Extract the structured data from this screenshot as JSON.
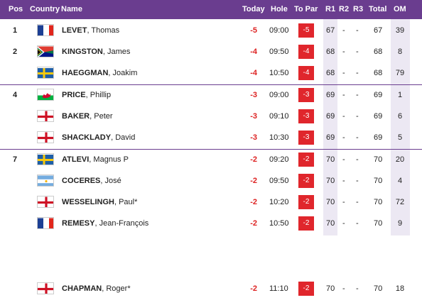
{
  "headers": {
    "pos": "Pos",
    "country": "Country",
    "name": "Name",
    "today": "Today",
    "hole": "Hole",
    "topar": "To Par",
    "r1": "R1",
    "r2": "R2",
    "r3": "R3",
    "total": "Total",
    "om": "OM"
  },
  "rows": [
    {
      "pos": "1",
      "flag": "france-flag-icon",
      "last": "LEVET",
      "first": "Thomas",
      "today": "-5",
      "hole": "09:00",
      "topar": "-5",
      "r1": "67",
      "r2": "-",
      "r3": "-",
      "total": "67",
      "om": "39"
    },
    {
      "pos": "2",
      "flag": "south-africa-flag-icon",
      "last": "KINGSTON",
      "first": "James",
      "today": "-4",
      "hole": "09:50",
      "topar": "-4",
      "r1": "68",
      "r2": "-",
      "r3": "-",
      "total": "68",
      "om": "8"
    },
    {
      "pos": "",
      "flag": "sweden-flag-icon",
      "last": "HAEGGMAN",
      "first": "Joakim",
      "today": "-4",
      "hole": "10:50",
      "topar": "-4",
      "r1": "68",
      "r2": "-",
      "r3": "-",
      "total": "68",
      "om": "79"
    },
    {
      "pos": "4",
      "flag": "wales-flag-icon",
      "last": "PRICE",
      "first": "Phillip",
      "today": "-3",
      "hole": "09:00",
      "topar": "-3",
      "r1": "69",
      "r2": "-",
      "r3": "-",
      "total": "69",
      "om": "1"
    },
    {
      "pos": "",
      "flag": "england-flag-icon",
      "last": "BAKER",
      "first": "Peter",
      "today": "-3",
      "hole": "09:10",
      "topar": "-3",
      "r1": "69",
      "r2": "-",
      "r3": "-",
      "total": "69",
      "om": "6"
    },
    {
      "pos": "",
      "flag": "england-flag-icon",
      "last": "SHACKLADY",
      "first": "David",
      "today": "-3",
      "hole": "10:30",
      "topar": "-3",
      "r1": "69",
      "r2": "-",
      "r3": "-",
      "total": "69",
      "om": "5"
    },
    {
      "pos": "7",
      "flag": "sweden-flag-icon",
      "last": "ATLEVI",
      "first": "Magnus P",
      "today": "-2",
      "hole": "09:20",
      "topar": "-2",
      "r1": "70",
      "r2": "-",
      "r3": "-",
      "total": "70",
      "om": "20"
    },
    {
      "pos": "",
      "flag": "argentina-flag-icon",
      "last": "COCERES",
      "first": "José",
      "today": "-2",
      "hole": "09:50",
      "topar": "-2",
      "r1": "70",
      "r2": "-",
      "r3": "-",
      "total": "70",
      "om": "4"
    },
    {
      "pos": "",
      "flag": "england-flag-icon",
      "last": "WESSELINGH",
      "first": "Paul*",
      "today": "-2",
      "hole": "10:20",
      "topar": "-2",
      "r1": "70",
      "r2": "-",
      "r3": "-",
      "total": "70",
      "om": "72"
    },
    {
      "pos": "",
      "flag": "france-flag-icon",
      "last": "REMESY",
      "first": "Jean-François",
      "today": "-2",
      "hole": "10:50",
      "topar": "-2",
      "r1": "70",
      "r2": "-",
      "r3": "-",
      "total": "70",
      "om": "9"
    },
    {
      "pos": "",
      "flag": "england-flag-icon",
      "last": "CHAPMAN",
      "first": "Roger*",
      "today": "-2",
      "hole": "11:10",
      "topar": "-2",
      "r1": "70",
      "r2": "-",
      "r3": "-",
      "total": "70",
      "om": "18"
    }
  ],
  "colors": {
    "header": "#6a3d8f",
    "score_red": "#e0262c",
    "round_bg": "#ece8f3"
  }
}
